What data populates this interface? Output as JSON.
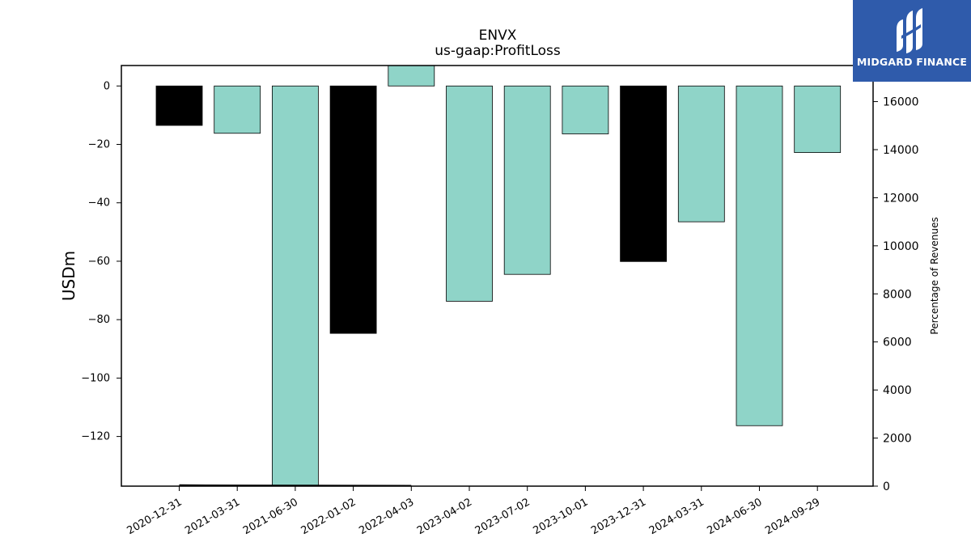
{
  "chart_data": {
    "type": "bar",
    "title": "ENVX",
    "subtitle": "us-gaap:ProfitLoss",
    "ylabel": "USDm",
    "y2label": "Percentage of Revenues",
    "categories": [
      "2020-12-31",
      "2021-03-31",
      "2021-06-30",
      "2022-01-02",
      "2022-04-03",
      "2023-04-02",
      "2023-07-02",
      "2023-10-01",
      "2023-12-31",
      "2024-03-31",
      "2024-06-30",
      "2024-09-29"
    ],
    "values": [
      -13.5,
      -16.2,
      -137,
      -84.7,
      7.5,
      -73.7,
      -64.5,
      -16.4,
      -60.1,
      -46.5,
      -116.3,
      -22.8
    ],
    "bar_colors": [
      "#000000",
      "#8fd4c8",
      "#8fd4c8",
      "#000000",
      "#8fd4c8",
      "#8fd4c8",
      "#8fd4c8",
      "#8fd4c8",
      "#000000",
      "#8fd4c8",
      "#8fd4c8",
      "#8fd4c8"
    ],
    "ylim": [
      -137,
      7
    ],
    "yticks": [
      0,
      -20,
      -40,
      -60,
      -80,
      -100,
      -120
    ],
    "y2lim": [
      0,
      17500
    ],
    "y2ticks": [
      0,
      2000,
      4000,
      6000,
      8000,
      10000,
      12000,
      14000,
      16000
    ],
    "secondary_line": {
      "x": [
        "2020-12-31",
        "2021-03-31",
        "2021-06-30",
        "2022-01-02",
        "2022-04-03"
      ],
      "values": [
        40,
        30,
        25,
        20,
        15
      ],
      "color": "#000000"
    },
    "grid": false,
    "legend": "none"
  },
  "logo": {
    "text": "MIDGARD FINANCE"
  }
}
